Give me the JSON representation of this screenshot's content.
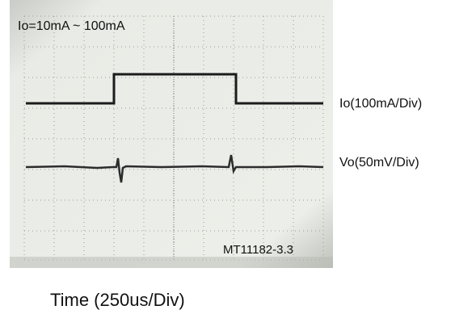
{
  "screen": {
    "note_top": "Io=10mA ~ 100mA",
    "model": "MT11182-3.3"
  },
  "traces": {
    "io_label": "Io(100mA/Div)",
    "vo_label": "Vo(50mV/Div)"
  },
  "x_axis_label": "Time (250us/Div)"
}
